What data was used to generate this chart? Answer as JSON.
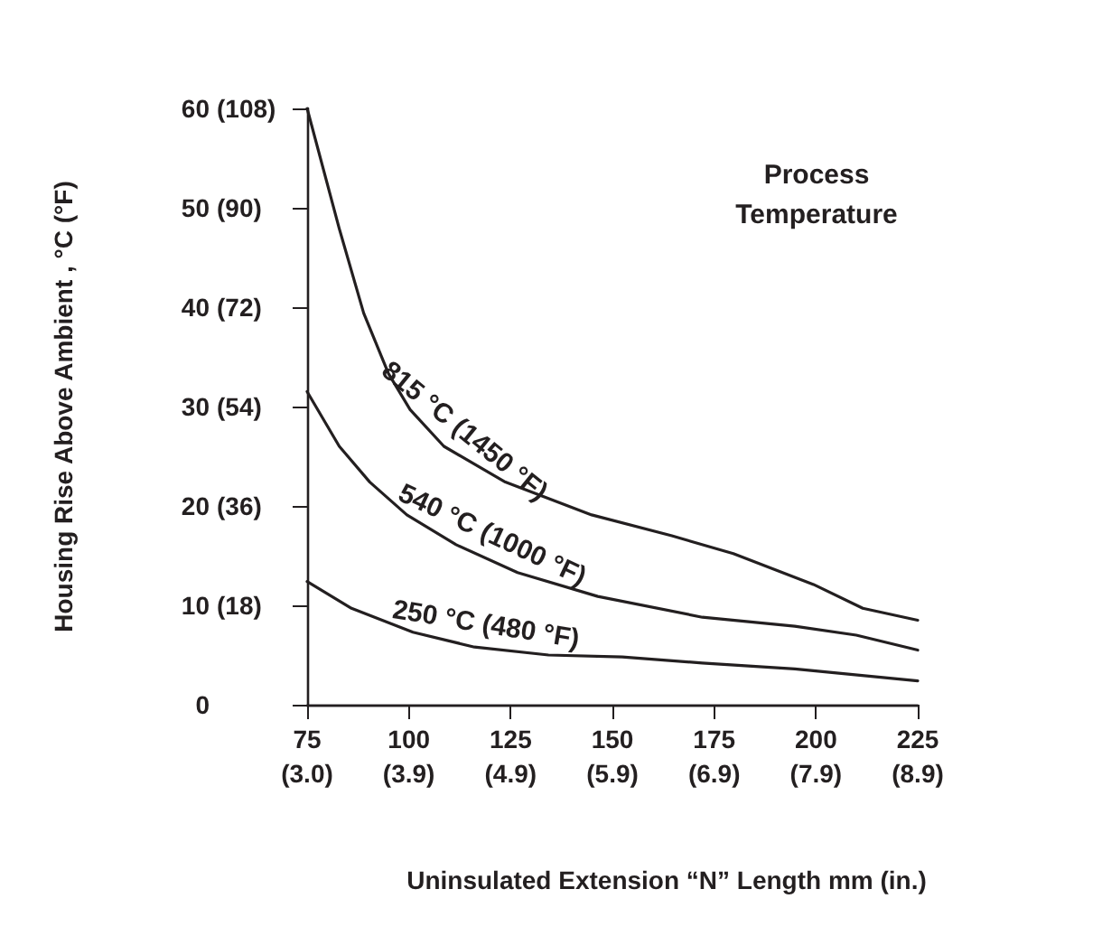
{
  "chart_data": {
    "type": "line",
    "xlabel": "Uninsulated Extension “N” Length mm (in.)",
    "ylabel": "Housing Rise Above Ambient , °C (°F)",
    "annotations": [
      "Process\nTemperature"
    ],
    "xlim": [
      75,
      225
    ],
    "xticks": [
      75,
      100,
      125,
      150,
      175,
      200,
      225
    ],
    "x2lim": [
      2.953,
      8.858
    ],
    "x2ticks": [
      {
        "value": 2.953,
        "label": "(3.0)"
      },
      {
        "value": 3.937,
        "label": "(3.9)"
      },
      {
        "value": 4.921,
        "label": "(4.9)"
      },
      {
        "value": 5.906,
        "label": "(5.9)"
      },
      {
        "value": 6.89,
        "label": "(6.9)"
      },
      {
        "value": 7.874,
        "label": "(7.9)"
      },
      {
        "value": 8.858,
        "label": "(8.9)"
      }
    ],
    "ylim": [
      0,
      60
    ],
    "yticks": [
      0,
      10,
      20,
      30,
      40,
      50,
      60
    ],
    "y2lim": [
      0,
      108
    ],
    "y2ticks": [
      {
        "value": 18,
        "label": "(18)"
      },
      {
        "value": 36,
        "label": "(36)"
      },
      {
        "value": 54,
        "label": "(54)"
      },
      {
        "value": 72,
        "label": "(72)"
      },
      {
        "value": 90,
        "label": "(90)"
      },
      {
        "value": 108,
        "label": "(108)"
      }
    ],
    "grid": false,
    "legend": false,
    "marker": "none",
    "line_style": "solid",
    "series": [
      {
        "name": "815 °C (1450 °F)",
        "color": "#231f20",
        "x": [
          75,
          82.9,
          88.9,
          95,
          100.3,
          108.6,
          123.7,
          144.9,
          164.6,
          179.7,
          199.4,
          211.5,
          225
        ],
        "values": [
          60,
          47.9,
          39.4,
          33.3,
          29.7,
          26,
          22.4,
          19.1,
          17,
          15.2,
          12.1,
          9.7,
          8.5
        ]
      },
      {
        "name": "540 °C (1000 °F)",
        "color": "#231f20",
        "x": [
          75,
          82.9,
          90.4,
          99.5,
          111.6,
          126.7,
          146.4,
          172.1,
          194.8,
          209.9,
          225
        ],
        "values": [
          31.5,
          26,
          22.4,
          19.1,
          16.1,
          13.3,
          10.9,
          8.8,
          7.9,
          7,
          5.5
        ]
      },
      {
        "name": "250 °C (480 °F)",
        "color": "#231f20",
        "x": [
          75,
          85.9,
          101,
          116.1,
          134.3,
          152.4,
          172.1,
          194.8,
          225
        ],
        "values": [
          12.4,
          9.7,
          7.3,
          5.8,
          5,
          4.8,
          4.2,
          3.6,
          2.4
        ]
      }
    ]
  }
}
